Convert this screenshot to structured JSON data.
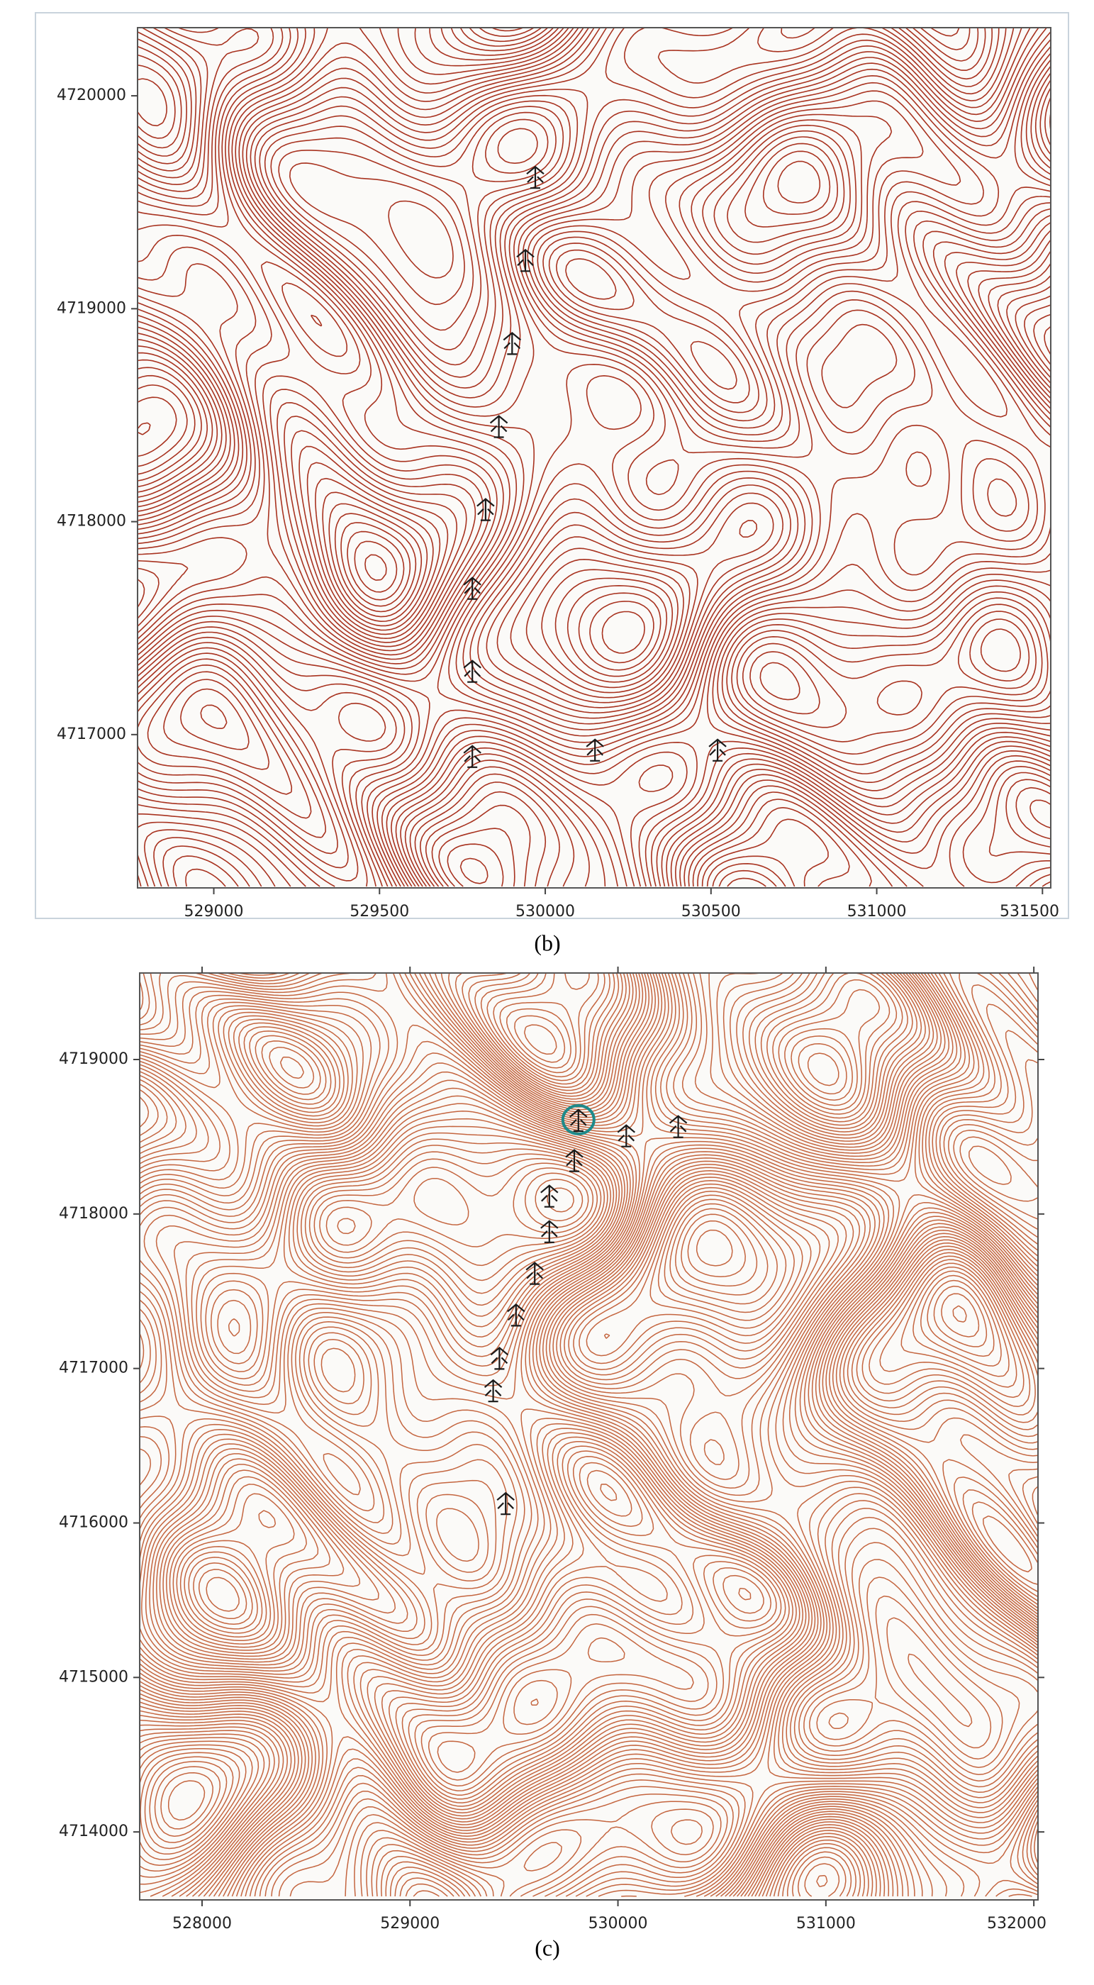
{
  "maps": [
    {
      "label": "(b)",
      "xlim": [
        528770,
        531525
      ],
      "ylim": [
        4716280,
        4720320
      ],
      "xticks": [
        529000,
        529500,
        530000,
        530500,
        531000,
        531500
      ],
      "yticks": [
        4717000,
        4718000,
        4719000,
        4720000
      ],
      "symbols": [
        {
          "x": 529970,
          "y": 4719620
        },
        {
          "x": 529940,
          "y": 4719230
        },
        {
          "x": 529900,
          "y": 4718840
        },
        {
          "x": 529860,
          "y": 4718450
        },
        {
          "x": 529820,
          "y": 4718060
        },
        {
          "x": 529780,
          "y": 4717690
        },
        {
          "x": 529780,
          "y": 4717300
        },
        {
          "x": 529780,
          "y": 4716900
        },
        {
          "x": 530150,
          "y": 4716930
        },
        {
          "x": 530520,
          "y": 4716930
        }
      ]
    },
    {
      "label": "(c)",
      "xlim": [
        527700,
        532020
      ],
      "ylim": [
        4713560,
        4719560
      ],
      "xticks": [
        528000,
        529000,
        530000,
        531000,
        532000
      ],
      "yticks": [
        4714000,
        4715000,
        4716000,
        4717000,
        4718000,
        4719000
      ],
      "symbols": [
        {
          "x": 529810,
          "y": 4718610
        },
        {
          "x": 530040,
          "y": 4718510
        },
        {
          "x": 530290,
          "y": 4718570
        },
        {
          "x": 529790,
          "y": 4718350
        },
        {
          "x": 529670,
          "y": 4718120
        },
        {
          "x": 529670,
          "y": 4717890
        },
        {
          "x": 529600,
          "y": 4717620
        },
        {
          "x": 529510,
          "y": 4717350
        },
        {
          "x": 529430,
          "y": 4717070
        },
        {
          "x": 529400,
          "y": 4716860
        },
        {
          "x": 529460,
          "y": 4716130
        }
      ]
    }
  ]
}
